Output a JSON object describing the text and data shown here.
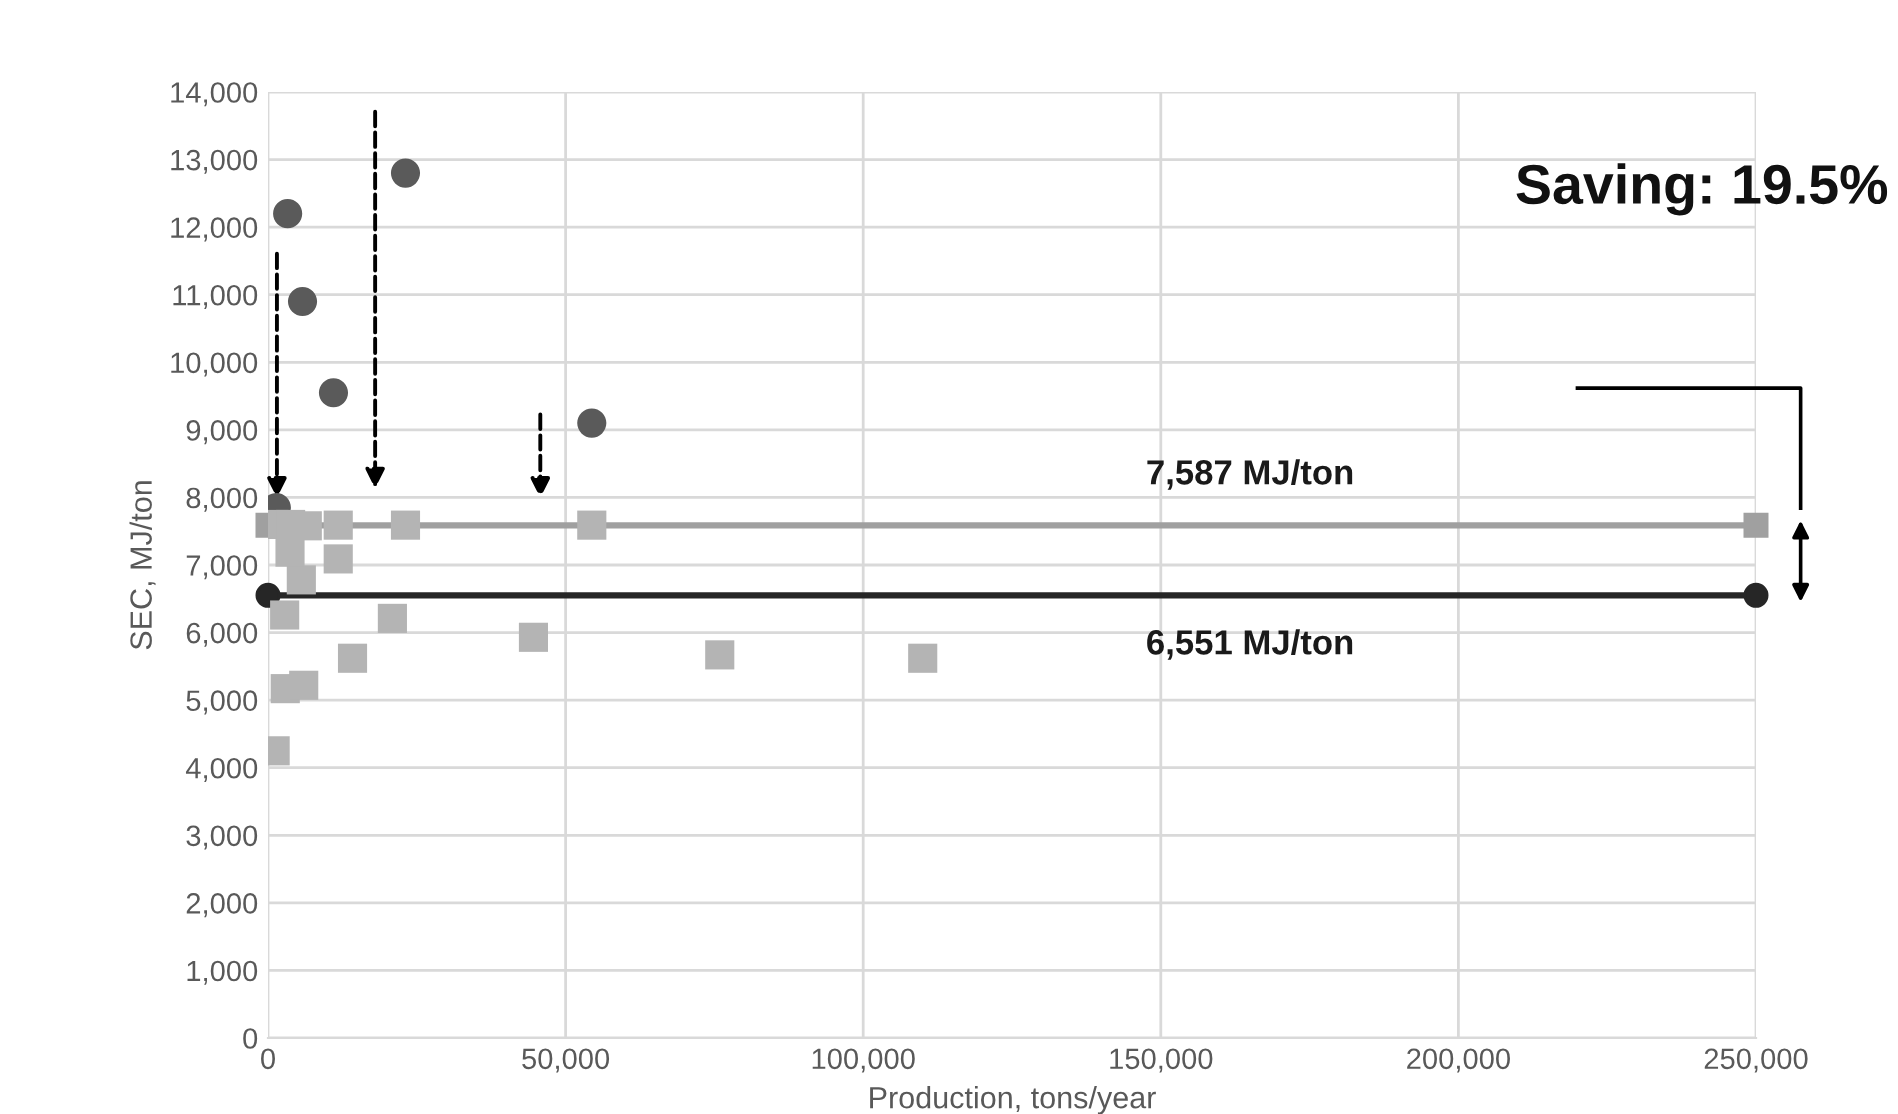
{
  "chart_data": {
    "type": "scatter",
    "xlabel": "Production, tons/year",
    "ylabel": "SEC, MJ/ton",
    "xlim": [
      0,
      250000
    ],
    "ylim": [
      0,
      14000
    ],
    "xticks": [
      0,
      {
        "value": 50000,
        "label": "50,000"
      },
      {
        "value": 100000,
        "label": "100,000"
      },
      {
        "value": 150000,
        "label": "150,000"
      },
      {
        "value": 200000,
        "label": "200,000"
      },
      {
        "value": 250000,
        "label": "250,000"
      }
    ],
    "yticks": [
      0,
      {
        "value": 1000,
        "label": "1,000"
      },
      {
        "value": 2000,
        "label": "2,000"
      },
      {
        "value": 3000,
        "label": "3,000"
      },
      {
        "value": 4000,
        "label": "4,000"
      },
      {
        "value": 5000,
        "label": "5,000"
      },
      {
        "value": 6000,
        "label": "6,000"
      },
      {
        "value": 7000,
        "label": "7,000"
      },
      {
        "value": 8000,
        "label": "8,000"
      },
      {
        "value": 9000,
        "label": "9,000"
      },
      {
        "value": 10000,
        "label": "10,000"
      },
      {
        "value": 11000,
        "label": "11,000"
      },
      {
        "value": 12000,
        "label": "12,000"
      },
      {
        "value": 13000,
        "label": "13,000"
      },
      {
        "value": 14000,
        "label": "14,000"
      }
    ],
    "grid": true,
    "legend": false,
    "series": [
      {
        "marker": "circle",
        "color": "#5a5a5a",
        "x": [
          1400,
          3300,
          5800,
          11000,
          23100,
          54400
        ],
        "values": [
          7850,
          12200,
          10900,
          9550,
          12800,
          9100
        ]
      },
      {
        "marker": "square",
        "color": "#b4b4b4",
        "x": [
          1200,
          2900,
          6000,
          2800,
          20900,
          14200,
          44600,
          5600,
          11800,
          3700,
          1000,
          3800,
          6600,
          10000,
          11800,
          23100,
          54400,
          75900,
          110000
        ],
        "values": [
          4250,
          5170,
          5220,
          6260,
          6210,
          5620,
          5930,
          6780,
          7090,
          7190,
          7600,
          7600,
          7580,
          null,
          7590,
          7590,
          7590,
          5670,
          5620
        ]
      },
      {
        "type": "line",
        "marker": "square",
        "color": "#a0a0a0",
        "x": [
          0,
          250000
        ],
        "values": [
          7587,
          7587
        ]
      },
      {
        "type": "line",
        "marker": "circle",
        "color": "#262626",
        "x": [
          0,
          250000
        ],
        "values": [
          6551,
          6551
        ]
      }
    ],
    "annotations": [
      {
        "text": "7,587 MJ/ton",
        "x": 165000,
        "y": 7587
      },
      {
        "text": "6,551 MJ/ton",
        "x": 165000,
        "y": 6551
      },
      "Saving: 19.5%"
    ]
  }
}
